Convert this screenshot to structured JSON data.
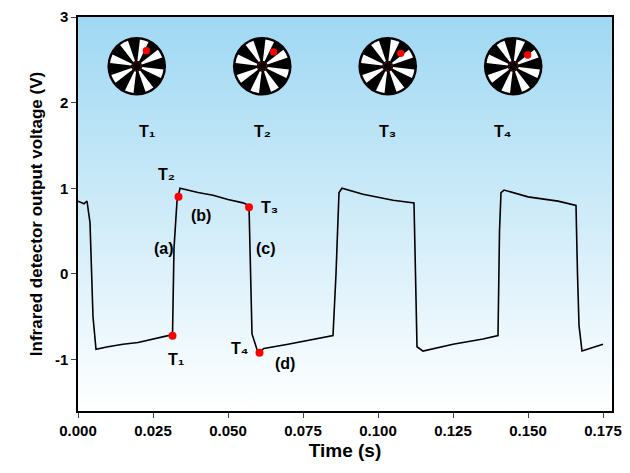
{
  "chart_data": {
    "type": "line",
    "xlabel": "Time (s)",
    "ylabel": "Infrared detector output voltage (V)",
    "xlim": [
      0,
      0.178
    ],
    "ylim": [
      -1.6,
      3
    ],
    "xticks": [
      {
        "value": 0,
        "label": "0.000"
      },
      {
        "value": 0.025,
        "label": "0.025"
      },
      {
        "value": 0.05,
        "label": "0.050"
      },
      {
        "value": 0.075,
        "label": "0.075"
      },
      {
        "value": 0.1,
        "label": "0.100"
      },
      {
        "value": 0.125,
        "label": "0.125"
      },
      {
        "value": 0.15,
        "label": "0.150"
      },
      {
        "value": 0.175,
        "label": "0.175"
      }
    ],
    "yticks": [
      -1,
      0,
      1,
      2,
      3
    ],
    "grid": false,
    "series": [
      {
        "type": "line",
        "color": "#000000",
        "x": [
          0,
          0.002,
          0.003,
          0.004,
          0.005,
          0.006,
          0.01,
          0.015,
          0.02,
          0.025,
          0.03,
          0.0315,
          0.032,
          0.033,
          0.034,
          0.04,
          0.045,
          0.05,
          0.055,
          0.057,
          0.0575,
          0.058,
          0.06,
          0.062,
          0.07,
          0.08,
          0.085,
          0.086,
          0.087,
          0.088,
          0.095,
          0.105,
          0.112,
          0.1125,
          0.113,
          0.115,
          0.125,
          0.135,
          0.14,
          0.1405,
          0.141,
          0.142,
          0.15,
          0.16,
          0.166,
          0.1665,
          0.167,
          0.168,
          0.172,
          0.175
        ],
        "values": [
          0.85,
          0.82,
          0.85,
          0.6,
          -0.5,
          -0.88,
          -0.85,
          -0.82,
          -0.8,
          -0.76,
          -0.72,
          -0.72,
          0.3,
          0.85,
          1.0,
          0.95,
          0.92,
          0.87,
          0.83,
          0.8,
          0.0,
          -0.7,
          -0.92,
          -0.87,
          -0.82,
          -0.75,
          -0.72,
          0.0,
          0.95,
          1.0,
          0.93,
          0.86,
          0.83,
          0.0,
          -0.85,
          -0.9,
          -0.82,
          -0.76,
          -0.72,
          0.5,
          0.95,
          0.98,
          0.9,
          0.85,
          0.8,
          0.0,
          -0.6,
          -0.9,
          -0.85,
          -0.82
        ]
      },
      {
        "type": "scatter",
        "color": "#ff0000",
        "marker": "circle",
        "x": [
          0.0315,
          0.0335,
          0.057,
          0.0605
        ],
        "values": [
          -0.72,
          0.9,
          0.78,
          -0.92
        ],
        "labels": [
          "T₁",
          "T₂",
          "T₃",
          "T₄"
        ]
      }
    ],
    "annotations": [
      {
        "text": "(a)",
        "x": 0.0285,
        "y": 0.3
      },
      {
        "text": "(b)",
        "x": 0.041,
        "y": 0.68
      },
      {
        "text": "(c)",
        "x": 0.0625,
        "y": 0.3
      },
      {
        "text": "(d)",
        "x": 0.069,
        "y": -1.05
      }
    ],
    "inset_labels": [
      "T₁",
      "T₂",
      "T₃",
      "T₄"
    ]
  }
}
